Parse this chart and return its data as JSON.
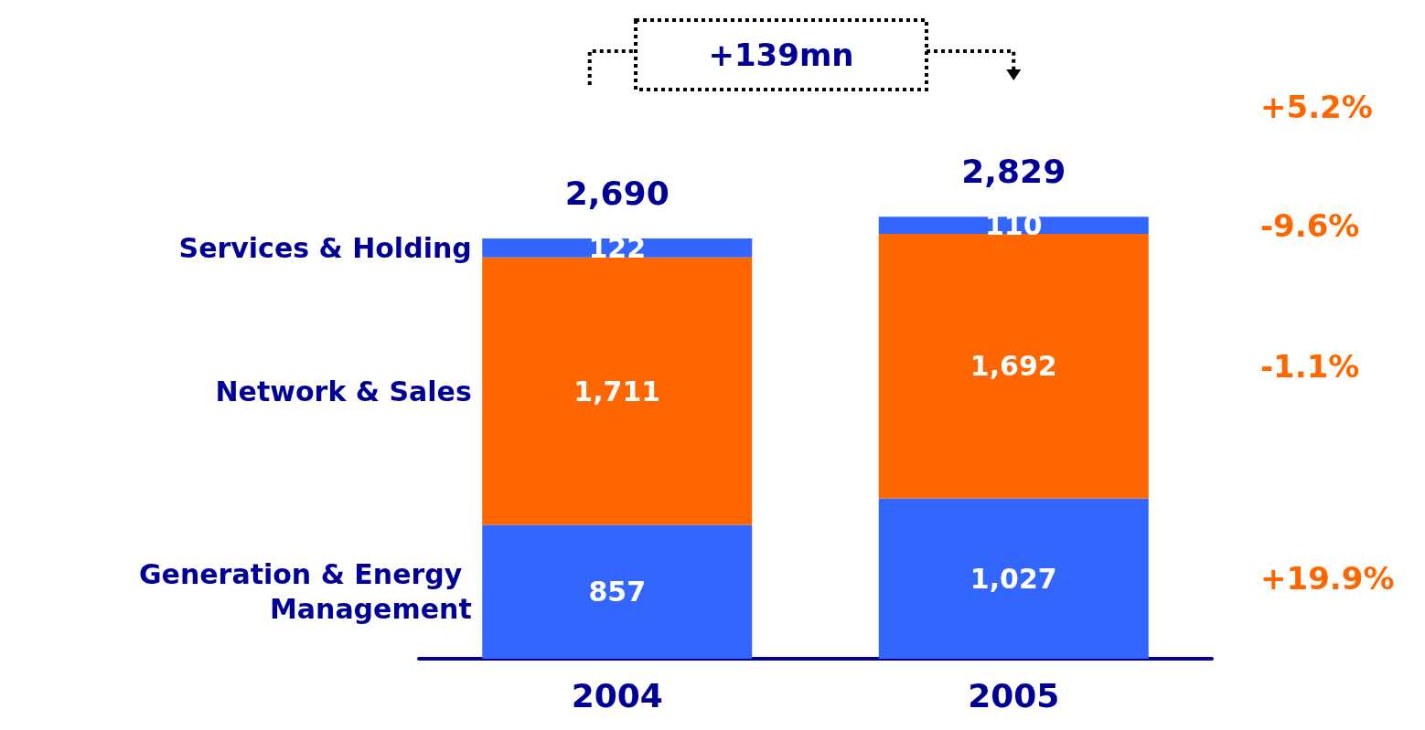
{
  "chart_data": {
    "type": "bar",
    "stacked": true,
    "categories": [
      "2004",
      "2005"
    ],
    "series": [
      {
        "name": "Generation & Energy Management",
        "color": "#3366ff",
        "values": [
          857,
          1027
        ],
        "value_labels": [
          "857",
          "1,027"
        ]
      },
      {
        "name": "Network & Sales",
        "color": "#ff6600",
        "values": [
          1711,
          1692
        ],
        "value_labels": [
          "1,711",
          "1,692"
        ]
      },
      {
        "name": "Services & Holding",
        "color": "#3366ff",
        "values": [
          122,
          110
        ],
        "value_labels": [
          "122",
          "110"
        ]
      }
    ],
    "totals": [
      "2,690",
      "2,829"
    ],
    "annotations": [
      "+139mn",
      "+5.2%",
      "-9.6%",
      "-1.1%",
      "+19.9%"
    ],
    "legend": false
  }
}
